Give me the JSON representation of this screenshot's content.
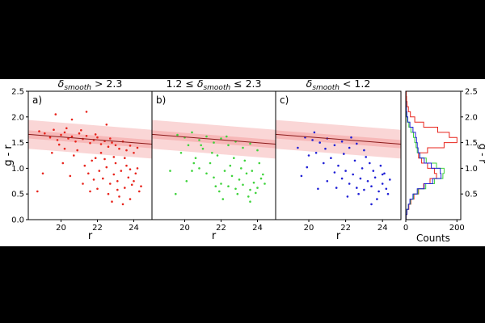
{
  "chart_data": [
    {
      "type": "scatter",
      "panel_label": "a)",
      "title": {
        "prefix": "",
        "symbol": "δ",
        "subscript": "smooth",
        "suffix": " > 2.3"
      },
      "xlabel": "r",
      "ylabel": "g - r",
      "xlim": [
        18.2,
        25.0
      ],
      "ylim": [
        0.0,
        2.5
      ],
      "xticks": [
        "20",
        "22",
        "24"
      ],
      "yticks": [
        "0.0",
        "0.5",
        "1.0",
        "1.5",
        "2.0",
        "2.5"
      ],
      "color": "#e8241c",
      "band": {
        "x": [
          18.2,
          25.0
        ],
        "center": [
          1.66,
          1.47
        ],
        "lower_inner": [
          1.58,
          1.39
        ],
        "upper_inner": [
          1.74,
          1.55
        ],
        "lower_outer": [
          1.38,
          1.19
        ],
        "upper_outer": [
          1.94,
          1.75
        ]
      },
      "points": [
        [
          18.8,
          1.72
        ],
        [
          19.1,
          1.68
        ],
        [
          19.4,
          1.6
        ],
        [
          19.6,
          1.75
        ],
        [
          19.8,
          1.55
        ],
        [
          20.0,
          1.65
        ],
        [
          20.2,
          1.7
        ],
        [
          20.4,
          1.58
        ],
        [
          20.6,
          1.62
        ],
        [
          20.8,
          1.52
        ],
        [
          21.0,
          1.68
        ],
        [
          21.2,
          1.57
        ],
        [
          21.4,
          1.63
        ],
        [
          21.6,
          1.49
        ],
        [
          21.8,
          1.55
        ],
        [
          22.0,
          1.6
        ],
        [
          22.2,
          1.47
        ],
        [
          22.4,
          1.53
        ],
        [
          22.6,
          1.42
        ],
        [
          22.8,
          1.5
        ],
        [
          23.0,
          1.45
        ],
        [
          23.2,
          1.38
        ],
        [
          23.4,
          1.52
        ],
        [
          23.6,
          1.35
        ],
        [
          23.8,
          1.44
        ],
        [
          24.0,
          1.3
        ],
        [
          24.2,
          1.4
        ],
        [
          20.3,
          1.78
        ],
        [
          21.1,
          1.74
        ],
        [
          19.9,
          1.46
        ],
        [
          21.9,
          1.66
        ],
        [
          22.7,
          1.58
        ],
        [
          19.5,
          1.3
        ],
        [
          20.1,
          1.1
        ],
        [
          20.7,
          1.25
        ],
        [
          21.3,
          1.05
        ],
        [
          21.5,
          0.9
        ],
        [
          21.7,
          1.15
        ],
        [
          22.1,
          0.95
        ],
        [
          22.3,
          0.8
        ],
        [
          22.5,
          1.02
        ],
        [
          22.7,
          0.7
        ],
        [
          22.9,
          0.88
        ],
        [
          23.1,
          0.75
        ],
        [
          23.3,
          0.95
        ],
        [
          23.5,
          0.62
        ],
        [
          23.7,
          0.82
        ],
        [
          23.9,
          0.68
        ],
        [
          24.1,
          0.9
        ],
        [
          24.3,
          0.55
        ],
        [
          22.0,
          0.6
        ],
        [
          22.6,
          0.5
        ],
        [
          23.2,
          0.45
        ],
        [
          23.8,
          0.4
        ],
        [
          21.2,
          0.7
        ],
        [
          20.5,
          0.85
        ],
        [
          21.9,
          1.2
        ],
        [
          22.4,
          1.18
        ],
        [
          23.0,
          1.1
        ],
        [
          23.6,
          1.05
        ],
        [
          24.2,
          1.0
        ],
        [
          19.0,
          0.9
        ],
        [
          18.7,
          0.55
        ],
        [
          20.9,
          1.35
        ],
        [
          21.6,
          0.55
        ],
        [
          22.8,
          0.35
        ],
        [
          23.4,
          0.3
        ],
        [
          24.0,
          0.75
        ],
        [
          22.2,
          1.3
        ],
        [
          23.5,
          1.2
        ],
        [
          19.7,
          2.05
        ],
        [
          21.4,
          2.1
        ],
        [
          22.5,
          1.85
        ],
        [
          20.6,
          1.95
        ],
        [
          23.8,
          0.98
        ],
        [
          22.9,
          1.22
        ],
        [
          21.8,
          0.78
        ],
        [
          20.2,
          1.38
        ],
        [
          24.4,
          0.65
        ],
        [
          23.1,
          0.58
        ]
      ]
    },
    {
      "type": "scatter",
      "panel_label": "b)",
      "title": {
        "prefix": "1.2  ≤ ",
        "symbol": "δ",
        "subscript": "smooth",
        "suffix": " ≤  2.3"
      },
      "xlabel": "r",
      "ylabel": "",
      "xlim": [
        18.2,
        25.0
      ],
      "ylim": [
        0.0,
        2.5
      ],
      "xticks": [
        "20",
        "22",
        "24"
      ],
      "yticks": [],
      "color": "#3fd33c",
      "band": {
        "x": [
          18.2,
          25.0
        ],
        "center": [
          1.66,
          1.47
        ],
        "lower_inner": [
          1.58,
          1.39
        ],
        "upper_inner": [
          1.74,
          1.55
        ],
        "lower_outer": [
          1.38,
          1.19
        ],
        "upper_outer": [
          1.94,
          1.75
        ]
      },
      "points": [
        [
          19.6,
          1.65
        ],
        [
          20.0,
          1.6
        ],
        [
          20.4,
          1.7
        ],
        [
          20.8,
          1.55
        ],
        [
          21.2,
          1.62
        ],
        [
          21.6,
          1.5
        ],
        [
          22.0,
          1.58
        ],
        [
          22.4,
          1.45
        ],
        [
          22.8,
          1.52
        ],
        [
          23.2,
          1.4
        ],
        [
          23.6,
          1.48
        ],
        [
          24.0,
          1.35
        ],
        [
          20.2,
          1.45
        ],
        [
          21.0,
          1.38
        ],
        [
          19.8,
          1.3
        ],
        [
          20.6,
          1.2
        ],
        [
          21.4,
          1.1
        ],
        [
          21.8,
          1.25
        ],
        [
          22.2,
          0.95
        ],
        [
          22.6,
          0.85
        ],
        [
          23.0,
          0.78
        ],
        [
          23.4,
          0.9
        ],
        [
          23.8,
          0.72
        ],
        [
          24.2,
          0.8
        ],
        [
          22.0,
          0.7
        ],
        [
          22.4,
          0.65
        ],
        [
          22.8,
          0.6
        ],
        [
          23.2,
          0.68
        ],
        [
          23.6,
          0.58
        ],
        [
          24.0,
          0.62
        ],
        [
          21.2,
          0.9
        ],
        [
          21.6,
          0.82
        ],
        [
          20.8,
          1.0
        ],
        [
          20.4,
          0.95
        ],
        [
          22.5,
          1.05
        ],
        [
          23.1,
          1.0
        ],
        [
          23.7,
          0.95
        ],
        [
          24.3,
          0.88
        ],
        [
          22.9,
          0.5
        ],
        [
          23.5,
          0.45
        ],
        [
          21.9,
          0.55
        ],
        [
          20.1,
          0.75
        ],
        [
          19.5,
          0.5
        ],
        [
          19.2,
          0.95
        ],
        [
          24.1,
          1.1
        ],
        [
          23.3,
          1.15
        ],
        [
          22.7,
          1.2
        ],
        [
          21.5,
          1.3
        ],
        [
          20.9,
          1.45
        ],
        [
          22.3,
          1.62
        ],
        [
          23.9,
          0.52
        ],
        [
          24.4,
          0.7
        ],
        [
          21.7,
          0.65
        ],
        [
          22.1,
          0.4
        ],
        [
          23.6,
          0.35
        ],
        [
          20.5,
          1.1
        ]
      ]
    },
    {
      "type": "scatter",
      "panel_label": "c)",
      "title": {
        "prefix": "",
        "symbol": "δ",
        "subscript": "smooth",
        "suffix": " < 1.2"
      },
      "xlabel": "r",
      "ylabel": "",
      "xlim": [
        18.2,
        25.0
      ],
      "ylim": [
        0.0,
        2.5
      ],
      "xticks": [
        "20",
        "22",
        "24"
      ],
      "yticks": [],
      "color": "#1f1fd6",
      "band": {
        "x": [
          18.2,
          25.0
        ],
        "center": [
          1.66,
          1.47
        ],
        "lower_inner": [
          1.58,
          1.39
        ],
        "upper_inner": [
          1.74,
          1.55
        ],
        "lower_outer": [
          1.38,
          1.19
        ],
        "upper_outer": [
          1.94,
          1.75
        ]
      },
      "points": [
        [
          19.8,
          1.6
        ],
        [
          20.2,
          1.55
        ],
        [
          20.6,
          1.5
        ],
        [
          21.0,
          1.58
        ],
        [
          21.4,
          1.45
        ],
        [
          21.8,
          1.52
        ],
        [
          22.2,
          1.4
        ],
        [
          22.6,
          1.48
        ],
        [
          23.0,
          1.35
        ],
        [
          20.4,
          1.3
        ],
        [
          21.2,
          1.2
        ],
        [
          21.6,
          1.05
        ],
        [
          22.0,
          0.95
        ],
        [
          22.4,
          0.88
        ],
        [
          22.8,
          0.8
        ],
        [
          23.2,
          0.75
        ],
        [
          23.6,
          0.82
        ],
        [
          24.0,
          0.7
        ],
        [
          24.4,
          0.78
        ],
        [
          22.2,
          0.7
        ],
        [
          22.6,
          0.62
        ],
        [
          23.0,
          0.58
        ],
        [
          23.4,
          0.65
        ],
        [
          23.8,
          0.55
        ],
        [
          24.2,
          0.6
        ],
        [
          21.8,
          0.8
        ],
        [
          21.4,
          0.92
        ],
        [
          20.8,
          1.1
        ],
        [
          20.0,
          1.25
        ],
        [
          19.4,
          1.4
        ],
        [
          22.9,
          1.0
        ],
        [
          23.5,
          0.95
        ],
        [
          24.1,
          0.9
        ],
        [
          22.5,
          1.15
        ],
        [
          23.3,
          1.1
        ],
        [
          21.0,
          0.75
        ],
        [
          20.5,
          0.6
        ],
        [
          23.7,
          0.4
        ],
        [
          22.1,
          0.45
        ],
        [
          24.3,
          0.5
        ],
        [
          19.6,
          0.85
        ],
        [
          20.9,
          1.38
        ],
        [
          21.9,
          1.28
        ],
        [
          23.1,
          1.22
        ],
        [
          23.9,
          1.05
        ],
        [
          22.7,
          0.5
        ],
        [
          21.5,
          0.62
        ],
        [
          24.0,
          0.88
        ],
        [
          20.3,
          1.7
        ],
        [
          19.9,
          1.02
        ],
        [
          23.4,
          0.3
        ],
        [
          22.3,
          1.6
        ]
      ]
    },
    {
      "type": "histogram",
      "orientation": "horizontal",
      "xlabel": "Counts",
      "ylabel": "g - r",
      "xlim": [
        0,
        215
      ],
      "ylim": [
        0.0,
        2.5
      ],
      "xticks": [
        "0",
        "200"
      ],
      "yticks": [
        "0.5",
        "1.0",
        "1.5",
        "2.0",
        "2.5"
      ],
      "bin_edges": [
        0.0,
        0.1,
        0.2,
        0.3,
        0.4,
        0.5,
        0.6,
        0.7,
        0.8,
        0.9,
        1.0,
        1.1,
        1.2,
        1.3,
        1.4,
        1.5,
        1.6,
        1.7,
        1.8,
        1.9,
        2.0,
        2.1,
        2.2,
        2.3,
        2.4,
        2.5
      ],
      "series": [
        {
          "color": "#e8241c",
          "counts": [
            2,
            5,
            12,
            20,
            32,
            50,
            70,
            95,
            120,
            112,
            85,
            62,
            50,
            85,
            150,
            200,
            170,
            125,
            70,
            35,
            18,
            10,
            5,
            3,
            2
          ]
        },
        {
          "color": "#3fd33c",
          "counts": [
            1,
            4,
            10,
            18,
            30,
            48,
            78,
            112,
            145,
            150,
            120,
            80,
            55,
            45,
            40,
            35,
            30,
            20,
            12,
            6,
            3,
            2,
            1,
            0,
            0
          ]
        },
        {
          "color": "#1f1fd6",
          "counts": [
            1,
            4,
            10,
            16,
            28,
            45,
            72,
            105,
            138,
            135,
            100,
            72,
            55,
            48,
            45,
            42,
            38,
            28,
            16,
            8,
            4,
            2,
            1,
            0,
            0
          ]
        }
      ]
    }
  ]
}
